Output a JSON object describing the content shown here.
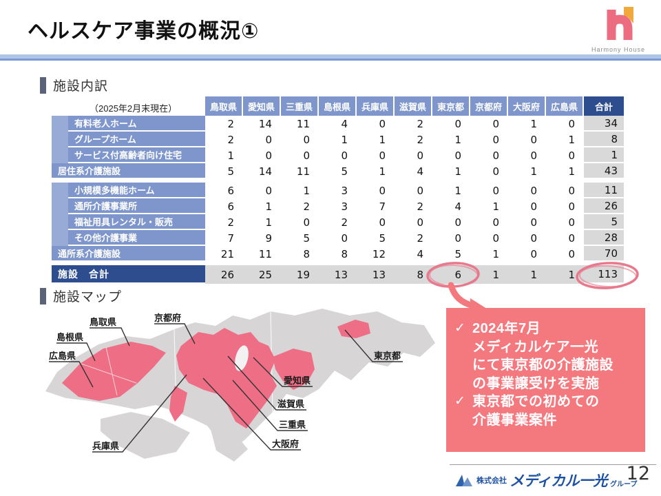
{
  "slide": {
    "title": "ヘルスケア事業の概況①",
    "page_number": "12"
  },
  "harmony_logo": {
    "caption": "Harmony House"
  },
  "section1": {
    "heading": "施設内訳",
    "as_of": "（2025年2月末現在）"
  },
  "section2": {
    "heading": "施設マップ"
  },
  "table": {
    "columns": [
      "鳥取県",
      "愛知県",
      "三重県",
      "島根県",
      "兵庫県",
      "滋賀県",
      "東京都",
      "京都府",
      "大阪府",
      "広島県",
      "合計"
    ],
    "rows": [
      {
        "label": "有料老人ホーム",
        "type": "sub",
        "values": [
          2,
          14,
          11,
          4,
          0,
          2,
          0,
          0,
          1,
          0
        ],
        "total": 34
      },
      {
        "label": "グループホーム",
        "type": "sub",
        "values": [
          2,
          0,
          0,
          1,
          1,
          2,
          1,
          0,
          0,
          1
        ],
        "total": 8
      },
      {
        "label": "サービス付高齢者向け住宅",
        "type": "sub",
        "values": [
          1,
          0,
          0,
          0,
          0,
          0,
          0,
          0,
          0,
          0
        ],
        "total": 1
      },
      {
        "label": "居住系介護施設",
        "type": "group",
        "values": [
          5,
          14,
          11,
          5,
          1,
          4,
          1,
          0,
          1,
          1
        ],
        "total": 43
      },
      {
        "label": "小規模多機能ホーム",
        "type": "sub",
        "gap_before": true,
        "values": [
          6,
          0,
          1,
          3,
          0,
          0,
          1,
          0,
          0,
          0
        ],
        "total": 11
      },
      {
        "label": "通所介護事業所",
        "type": "sub",
        "values": [
          6,
          1,
          2,
          3,
          7,
          2,
          4,
          1,
          0,
          0
        ],
        "total": 26
      },
      {
        "label": "福祉用具レンタル・販売",
        "type": "sub",
        "values": [
          2,
          1,
          0,
          2,
          0,
          0,
          0,
          0,
          0,
          0
        ],
        "total": 5
      },
      {
        "label": "その他介護事業",
        "type": "sub",
        "values": [
          7,
          9,
          5,
          0,
          5,
          2,
          0,
          0,
          0,
          0
        ],
        "total": 28
      },
      {
        "label": "通所系介護施設",
        "type": "group",
        "values": [
          21,
          11,
          8,
          8,
          12,
          4,
          5,
          1,
          0,
          0
        ],
        "total": 70
      },
      {
        "label": "施設　合計",
        "type": "grand",
        "gap_before": true,
        "values": [
          26,
          25,
          19,
          13,
          13,
          8,
          6,
          1,
          1,
          1
        ],
        "total": 113
      }
    ],
    "annotations": {
      "circled_tokyo_total": "6",
      "circled_grand_total": "113"
    }
  },
  "map": {
    "labels": [
      "鳥取県",
      "京都府",
      "島根県",
      "広島県",
      "兵庫県",
      "東京都",
      "愛知県",
      "滋賀県",
      "三重県",
      "大阪府"
    ],
    "highlight_color": "#ee6e86",
    "base_color": "#d7d5d5"
  },
  "callout": {
    "bg_color": "#f4797f",
    "items": [
      {
        "bullet": "✓",
        "text": "2024年7月\nメディカルケア一光\nにて東京都の介護施設\nの事業譲受けを実施"
      },
      {
        "bullet": "✓",
        "text": "東京都での初めての\n介護事業案件"
      }
    ]
  },
  "footer": {
    "company_prefix": "株式会社",
    "company_name": "メディカル一光",
    "company_suffix": "グループ"
  },
  "colors": {
    "header_blue": "#7e96cb",
    "navy": "#2d4d8f",
    "indent_blue": "#98abd7",
    "total_gray": "#d9d9d9",
    "callout_pink": "#f4797f",
    "annotation_pink": "#e8788c",
    "accent_line": "#aec5e8",
    "section_bar": "#5b6377",
    "footer_blue": "#1d52a2"
  }
}
